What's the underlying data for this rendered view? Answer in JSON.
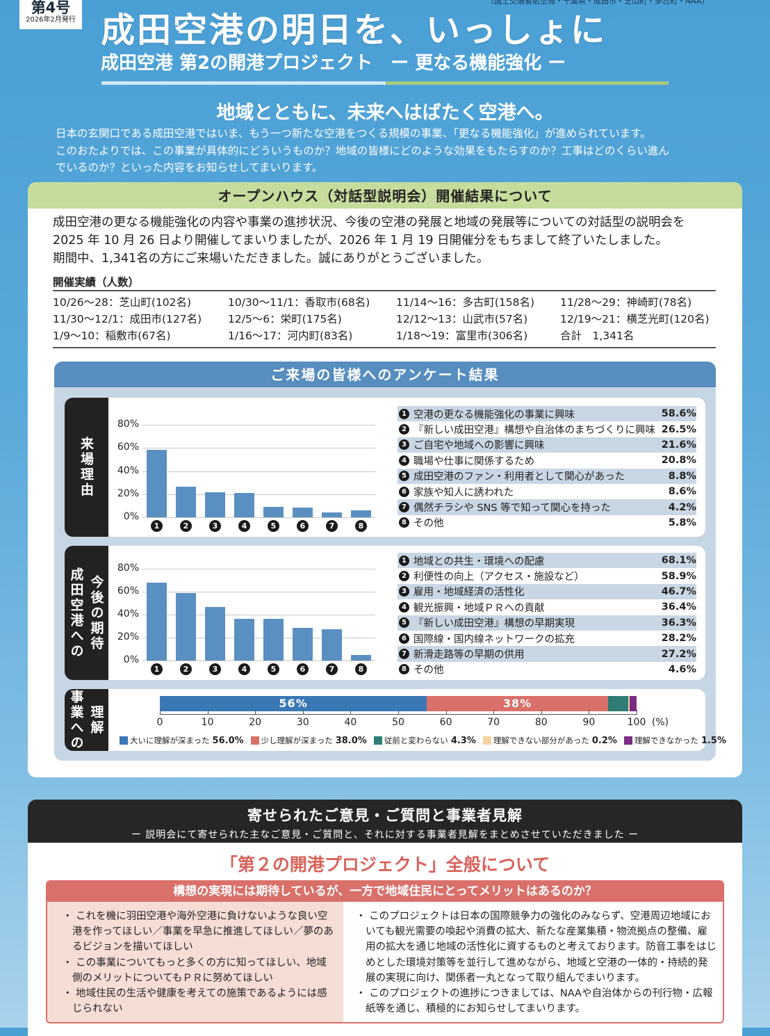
{
  "header": {
    "issue": "第4号",
    "date": "2026年2月発行",
    "publishers": "（国土交通省航空局・千葉県・成田市・芝山町・多古町・NAA）",
    "title": "成田空港の明日を、いっしょに",
    "subtitle": "成田空港 第2の開港プロジェクト　ー 更なる機能強化 ー"
  },
  "intro": {
    "heading": "地域とともに、未来へはばたく空港へ。",
    "lines": [
      "日本の玄関口である成田空港ではいま、もう一つ新たな空港をつくる規模の事業、「更なる機能強化」が進められています。",
      "このおたよりでは、この事業が具体的にどういうものか？地域の皆様にどのような効果をもたらすのか？工事はどのくらい進ん",
      "でいるのか？といった内容をお知らせしてまいります。"
    ]
  },
  "openhouse": {
    "title": "オープンハウス（対話型説明会）開催結果について",
    "body": [
      "成田空港の更なる機能強化の内容や事業の進捗状況、今後の空港の発展と地域の発展等についての対話型の説明会を",
      "2025 年 10 月 26 日より開催してまいりましたが、2026 年 1 月 19 日開催分をもちまして終了いたしました。",
      "期間中、1,341名の方にご来場いただきました。誠にありがとうございました。"
    ],
    "results_label": "開催実績（人数）",
    "results": [
      "10/26～28：芝山町(102名)",
      "10/30～11/1：香取市(68名)",
      "11/14～16：多古町(158名)",
      "11/28～29：神崎町(78名)",
      "11/30～12/1：成田市(127名)",
      "12/5～6：栄町(175名)",
      "12/12～13：山武市(57名)",
      "12/19～21：横芝光町(120名)",
      "1/9～10：稲敷市(67名)",
      "1/16～17：河内町(83名)",
      "1/18～19：富里市(306名)",
      "合計　1,341名"
    ]
  },
  "survey": {
    "title": "ご来場の皆様へのアンケート結果",
    "reasons": {
      "label_lines": [
        "来場理由"
      ],
      "yticks": [
        "80%",
        "60%",
        "40%",
        "20%",
        "0%"
      ],
      "ymax": 80,
      "items": [
        {
          "no": "1",
          "text": "空港の更なる機能強化の事業に興味",
          "value": 58.6,
          "value_label": "58.6%"
        },
        {
          "no": "2",
          "text": "『新しい成田空港』構想や自治体のまちづくりに興味",
          "value": 26.5,
          "value_label": "26.5%"
        },
        {
          "no": "3",
          "text": "ご自宅や地域への影響に興味",
          "value": 21.6,
          "value_label": "21.6%"
        },
        {
          "no": "4",
          "text": "職場や仕事に関係するため",
          "value": 20.8,
          "value_label": "20.8%"
        },
        {
          "no": "5",
          "text": "成田空港のファン・利用者として関心があった",
          "value": 8.8,
          "value_label": "8.8%"
        },
        {
          "no": "6",
          "text": "家族や知人に誘われた",
          "value": 8.6,
          "value_label": "8.6%"
        },
        {
          "no": "7",
          "text": "偶然チラシや SNS 等で知って関心を持った",
          "value": 4.2,
          "value_label": "4.2%"
        },
        {
          "no": "8",
          "text": "その他",
          "value": 5.8,
          "value_label": "5.8%"
        }
      ]
    },
    "expectations": {
      "label_lines": [
        "今後の期待",
        "成田空港への"
      ],
      "yticks": [
        "80%",
        "60%",
        "40%",
        "20%",
        "0%"
      ],
      "ymax": 80,
      "items": [
        {
          "no": "1",
          "text": "地域との共生・環境への配慮",
          "value": 68.1,
          "value_label": "68.1%"
        },
        {
          "no": "2",
          "text": "利便性の向上（アクセス・施設など）",
          "value": 58.9,
          "value_label": "58.9%"
        },
        {
          "no": "3",
          "text": "雇用・地域経済の活性化",
          "value": 46.7,
          "value_label": "46.7%"
        },
        {
          "no": "4",
          "text": "観光振興・地域ＰＲへの貢献",
          "value": 36.4,
          "value_label": "36.4%"
        },
        {
          "no": "5",
          "text": "『新しい成田空港』構想の早期実現",
          "value": 36.3,
          "value_label": "36.3%"
        },
        {
          "no": "6",
          "text": "国際線・国内線ネットワークの拡充",
          "value": 28.2,
          "value_label": "28.2%"
        },
        {
          "no": "7",
          "text": "新滑走路等の早期の供用",
          "value": 27.2,
          "value_label": "27.2%"
        },
        {
          "no": "8",
          "text": "その他",
          "value": 4.6,
          "value_label": "4.6%"
        }
      ]
    },
    "understanding": {
      "label_lines": [
        "理解",
        "事業への"
      ],
      "xticks": [
        "0",
        "10",
        "20",
        "30",
        "40",
        "50",
        "60",
        "70",
        "80",
        "90",
        "100"
      ],
      "unit": "(%)",
      "segments": [
        {
          "label": "大いに理解が深まった",
          "value": 56.0,
          "value_label": "56.0%",
          "bar_label": "56%",
          "color": "#3a78b5"
        },
        {
          "label": "少し理解が深まった",
          "value": 38.0,
          "value_label": "38.0%",
          "bar_label": "38%",
          "color": "#d9706a"
        },
        {
          "label": "従前と変わらない",
          "value": 4.3,
          "value_label": "4.3%",
          "bar_label": "",
          "color": "#2e7d74"
        },
        {
          "label": "理解できない部分があった",
          "value": 0.2,
          "value_label": "0.2%",
          "bar_label": "",
          "color": "#f3d2a0"
        },
        {
          "label": "理解できなかった",
          "value": 1.5,
          "value_label": "1.5%",
          "bar_label": "",
          "color": "#7b2d84"
        }
      ]
    }
  },
  "opinions": {
    "title": "寄せられたご意見・ご質問と事業者見解",
    "subtitle": "ー 説明会にて寄せられた主なご意見・ご質問と、それに対する事業者見解をまとめさせていただきました ー",
    "topic": "「第２の開港プロジェクト」全般について",
    "question": "構想の実現には期待しているが、一方で地域住民にとってメリットはあるのか？",
    "requests": [
      "・ これを機に羽田空港や海外空港に負けないような良い空港を作ってほしい／事業を早急に推進してほしい／夢のあるビジョンを描いてほしい",
      "・ この事業についてもっと多くの方に知ってほしい、地域側のメリットについてもＰＲに努めてほしい",
      "・ 地域住民の生活や健康を考えての施策であるようには感じられない"
    ],
    "answers": [
      "・ このプロジェクトは日本の国際競争力の強化のみならず、空港周辺地域においても観光需要の喚起や消費の拡大、新たな産業集積・物流拠点の整備、雇用の拡大を通じ地域の活性化に資するものと考えております。防音工事をはじめとした環境対策等を並行して進めながら、地域と空港の一体的・持続的発展の実現に向け、関係者一丸となって取り組んでまいります。",
      "・ このプロジェクトの進捗につきましては、NAAや自治体からの刊行物・広報紙等を通じ、積極的にお知らせしてまいります。"
    ]
  }
}
